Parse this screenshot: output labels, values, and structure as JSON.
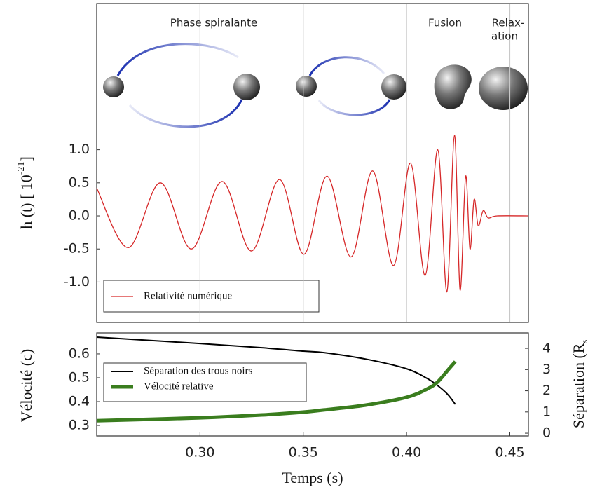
{
  "chart_data": [
    {
      "type": "line",
      "annotations": [
        "Phase spiralante",
        "Fusion",
        "Relax-",
        "ation"
      ],
      "ylabel": "h (t) [ 10",
      "ylabel_sup": "-21",
      "ylabel_end": "]",
      "xlim": [
        0.25,
        0.459
      ],
      "xticks": [
        0.3,
        0.35,
        0.4,
        0.45
      ],
      "grid": "x",
      "ylim": [
        -1.61,
        3.21
      ],
      "yticks": [
        {
          "value": 1,
          "label": "1.0"
        },
        0.5,
        {
          "value": 0,
          "label": "0.0"
        },
        -0.5,
        {
          "value": -1,
          "label": "-1.0"
        }
      ],
      "x": [
        0.25,
        0.2653,
        0.2808,
        0.2958,
        0.3107,
        0.3249,
        0.3385,
        0.3503,
        0.3615,
        0.3731,
        0.3836,
        0.3937,
        0.4019,
        0.409,
        0.4151,
        0.4195,
        0.4232,
        0.4259,
        0.4286,
        0.4307,
        0.4327,
        0.4347,
        0.4371,
        0.4395,
        0.4439,
        0.4588
      ],
      "series": [
        {
          "name": "Relativité numérique",
          "color": "#d62728",
          "values": [
            0.42,
            -0.48,
            0.5,
            -0.5,
            0.52,
            -0.53,
            0.55,
            -0.58,
            0.6,
            -0.62,
            0.68,
            -0.75,
            0.8,
            -0.9,
            1.0,
            -1.15,
            1.22,
            -1.12,
            0.6,
            -0.5,
            0.25,
            -0.15,
            0.08,
            -0.03,
            0,
            0
          ]
        }
      ]
    },
    {
      "type": "line",
      "xlabel": "Temps (s)",
      "ylabel": "Vélocité (c)",
      "y2label": "Séparation (R",
      "y2label_sub": "s",
      "xlim": [
        0.25,
        0.459
      ],
      "xticks": [
        {
          "value": 0.3,
          "label": "0.30"
        },
        {
          "value": 0.35,
          "label": "0.35"
        },
        {
          "value": 0.4,
          "label": "0.40"
        },
        {
          "value": 0.45,
          "label": "0.45"
        }
      ],
      "ylim": [
        0.256,
        0.688
      ],
      "yticks": [
        0.3,
        0.4,
        0.5,
        0.6
      ],
      "y2lim": [
        -0.13,
        4.73
      ],
      "y2ticks": [
        0,
        1,
        2,
        3,
        4
      ],
      "x": [
        0.25,
        0.3,
        0.33,
        0.35,
        0.36,
        0.38,
        0.4,
        0.41,
        0.415,
        0.42,
        0.4236
      ],
      "series": [
        {
          "name": "Séparation des trous noirs",
          "color": "#000000",
          "axis": "y2",
          "values": [
            4.53,
            4.23,
            4.03,
            3.87,
            3.8,
            3.5,
            3.04,
            2.58,
            2.25,
            1.82,
            1.36
          ]
        },
        {
          "name": "Vélocité relative",
          "color": "#3a7d1e",
          "values": [
            0.32,
            0.332,
            0.344,
            0.356,
            0.365,
            0.385,
            0.418,
            0.453,
            0.482,
            0.532,
            0.568
          ]
        }
      ]
    }
  ]
}
